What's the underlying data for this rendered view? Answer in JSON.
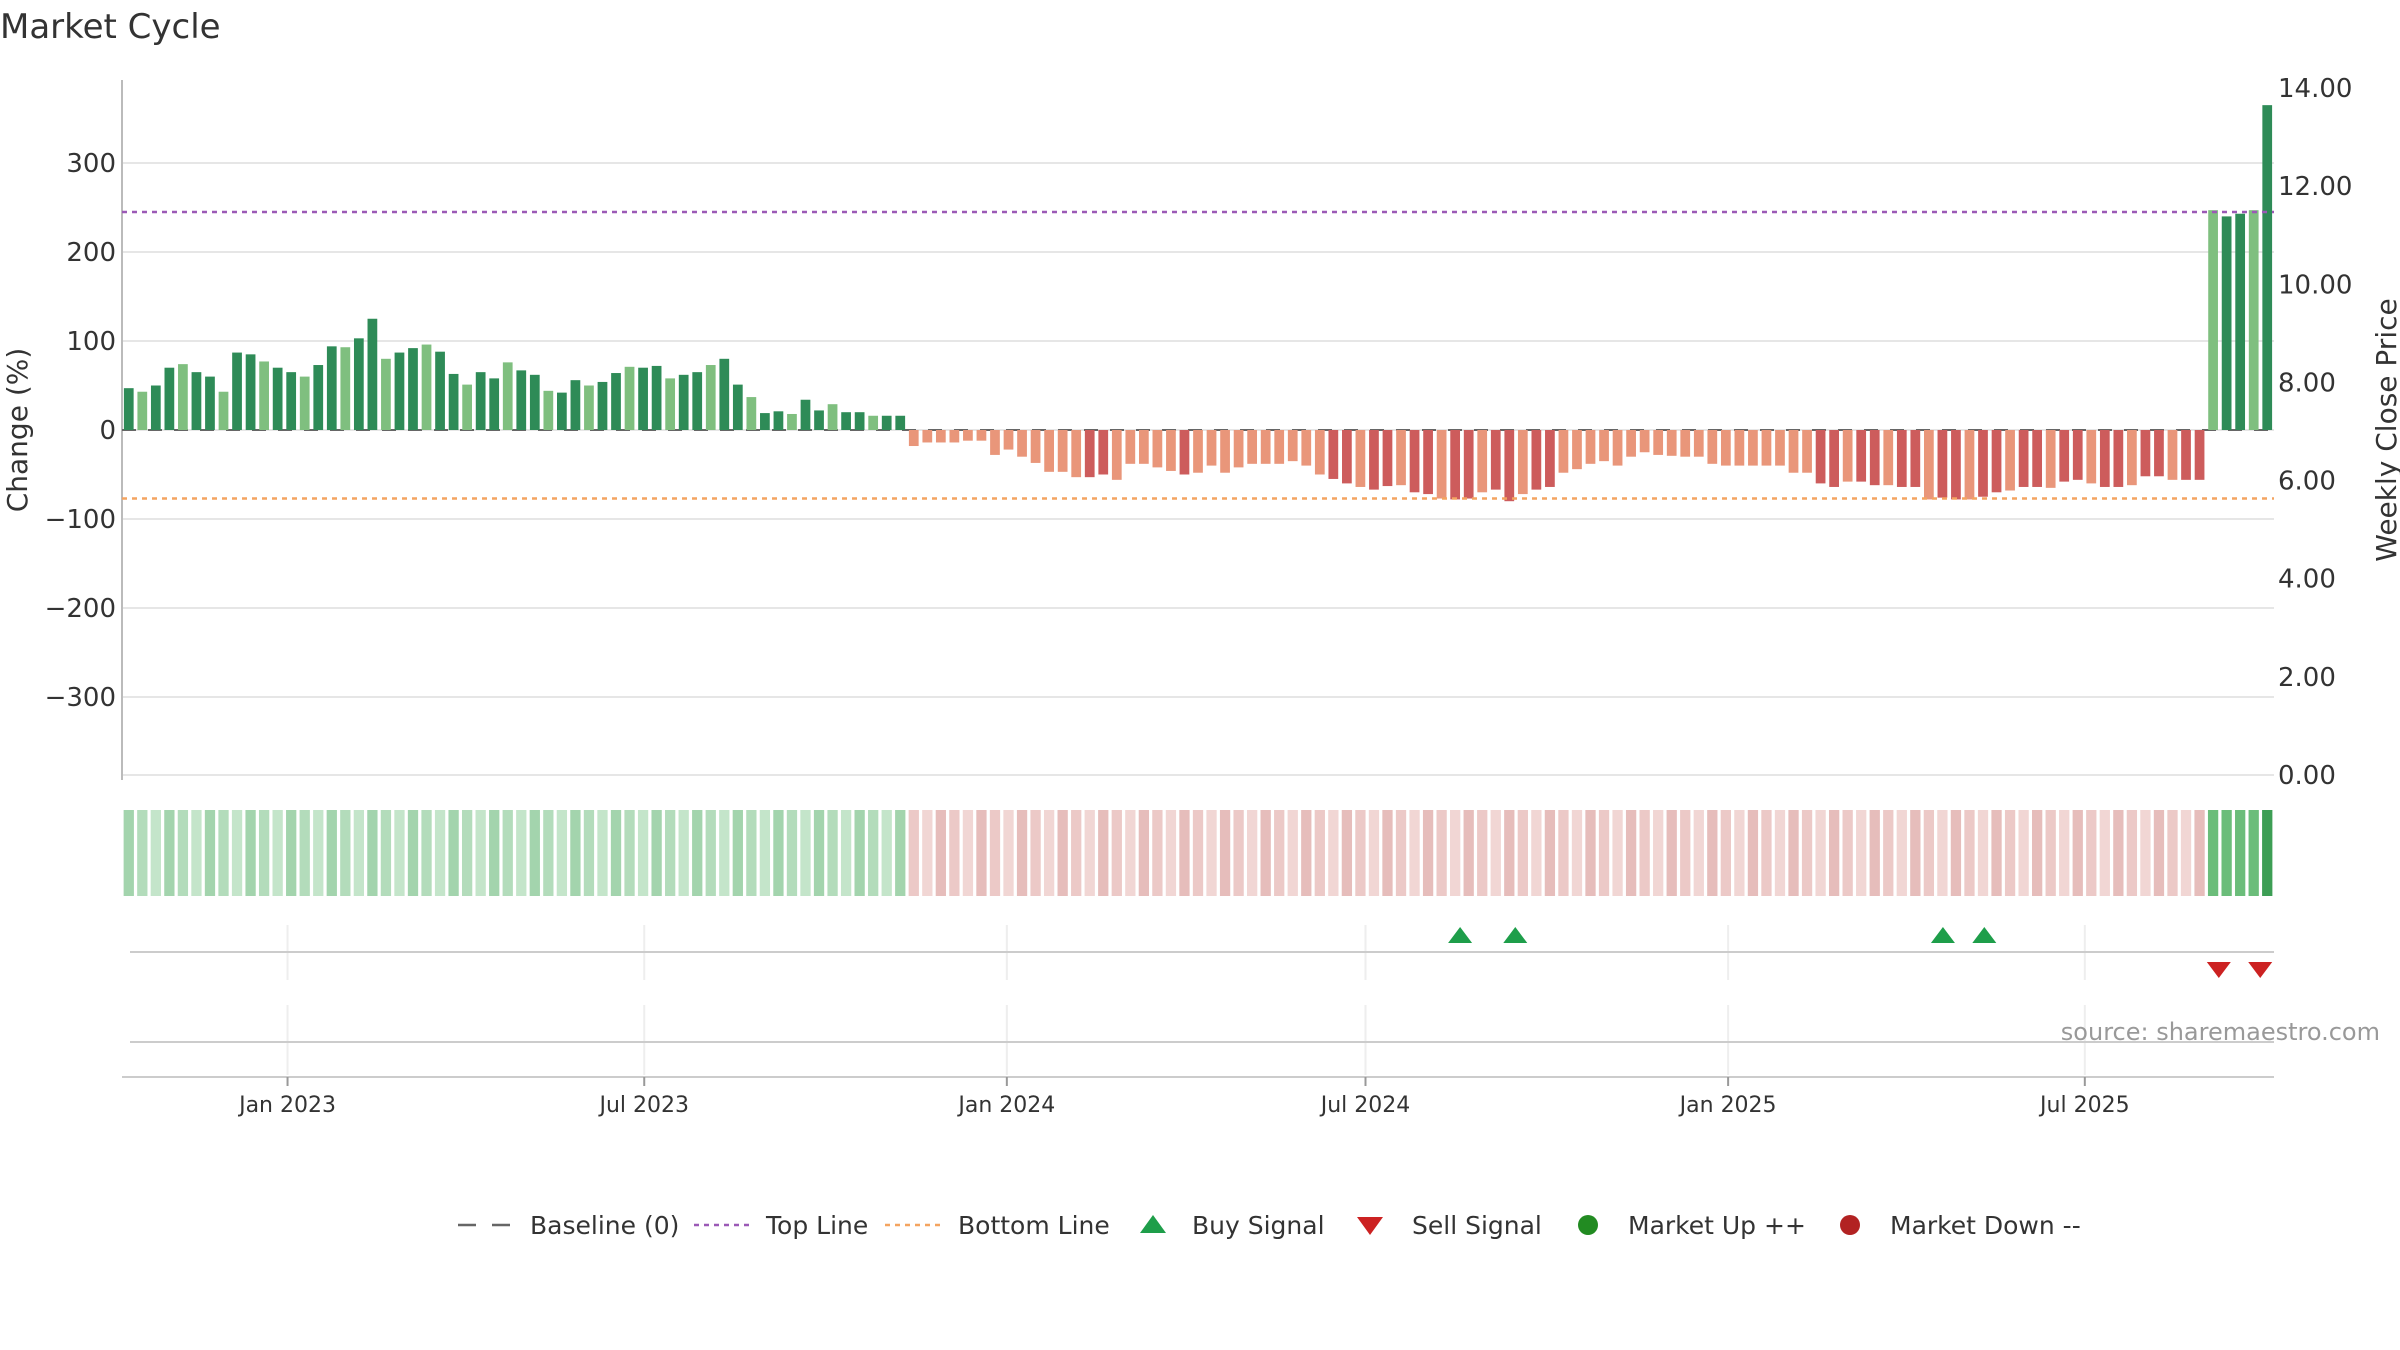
{
  "chart_data": {
    "type": "bar",
    "title": "Market Cycle",
    "ylabel": "Change (%)",
    "y2label": "Weekly Close Price",
    "ylim": [
      -390,
      390
    ],
    "y2lim": [
      0,
      14
    ],
    "yticks": [
      300,
      200,
      100,
      0,
      -100,
      -200,
      -300
    ],
    "yticklabels": [
      "300",
      "200",
      "100",
      "0",
      "−100",
      "−200",
      "−300"
    ],
    "y2ticks": [
      14,
      12,
      10,
      8,
      6,
      4,
      2,
      0
    ],
    "y2ticklabels": [
      "14.00",
      "12.00",
      "10.00",
      "8.00",
      "6.00",
      "4.00",
      "2.00",
      "0.00"
    ],
    "x_start": "2022-10-09",
    "x_end": "2025-10-05",
    "xticks": [
      {
        "date": "2023-01-01",
        "label": "Jan 2023"
      },
      {
        "date": "2023-07-01",
        "label": "Jul 2023"
      },
      {
        "date": "2024-01-01",
        "label": "Jan 2024"
      },
      {
        "date": "2024-07-01",
        "label": "Jul 2024"
      },
      {
        "date": "2025-01-01",
        "label": "Jan 2025"
      },
      {
        "date": "2025-07-01",
        "label": "Jul 2025"
      }
    ],
    "top_line": 245,
    "bottom_line": -77,
    "baseline": 0,
    "values": [
      47,
      43,
      50,
      70,
      74,
      65,
      60,
      43,
      87,
      85,
      77,
      70,
      65,
      60,
      73,
      94,
      93,
      103,
      125,
      80,
      87,
      92,
      96,
      88,
      63,
      51,
      65,
      58,
      76,
      67,
      62,
      44,
      42,
      56,
      50,
      54,
      64,
      71,
      70,
      72,
      58,
      62,
      65,
      73,
      80,
      51,
      37,
      19,
      21,
      18,
      34,
      22,
      29,
      20,
      20,
      16,
      16,
      16,
      -18,
      -14,
      -14,
      -14,
      -12,
      -12,
      -28,
      -22,
      -30,
      -37,
      -47,
      -47,
      -53,
      -53,
      -50,
      -56,
      -38,
      -38,
      -42,
      -46,
      -50,
      -48,
      -40,
      -48,
      -42,
      -38,
      -38,
      -38,
      -35,
      -40,
      -50,
      -55,
      -60,
      -64,
      -67,
      -63,
      -62,
      -70,
      -72,
      -77,
      -78,
      -77,
      -70,
      -67,
      -80,
      -72,
      -67,
      -64,
      -48,
      -44,
      -38,
      -35,
      -40,
      -30,
      -25,
      -28,
      -29,
      -30,
      -30,
      -38,
      -40,
      -40,
      -40,
      -40,
      -40,
      -48,
      -48,
      -60,
      -64,
      -58,
      -58,
      -62,
      -62,
      -64,
      -64,
      -78,
      -76,
      -78,
      -78,
      -75,
      -70,
      -68,
      -64,
      -64,
      -65,
      -58,
      -56,
      -60,
      -64,
      -64,
      -62,
      -52,
      -52,
      -56,
      -56,
      -56,
      247,
      240,
      243,
      247,
      365
    ],
    "heat_up_colors": [
      "#a3d4ad",
      "#b3dcbb",
      "#c4e5ca"
    ],
    "heat_down_colors": [
      "#e6bdbb",
      "#ecc9c7",
      "#f1d6d4"
    ],
    "heat_strong_up_color": "#6bbd7a",
    "heat_last_color": "#3d9e55",
    "buy_signals": [
      "2024-08-18",
      "2024-09-15",
      "2025-04-20",
      "2025-05-11"
    ],
    "sell_signals": [
      "2025-09-07",
      "2025-09-28"
    ],
    "source": "source: sharemaestro.com",
    "legend": [
      {
        "key": "baseline",
        "label": "Baseline (0)"
      },
      {
        "key": "top",
        "label": "Top Line"
      },
      {
        "key": "bottom",
        "label": "Bottom Line"
      },
      {
        "key": "buy",
        "label": "Buy Signal"
      },
      {
        "key": "sell",
        "label": "Sell Signal"
      },
      {
        "key": "up",
        "label": "Market Up ++"
      },
      {
        "key": "down",
        "label": "Market Down --"
      }
    ],
    "legend_position": "bottom-center",
    "grid": true
  },
  "colors": {
    "up_dark": "#2e8b57",
    "up_light": "#7fbf7f",
    "down_dark": "#cd5c5c",
    "down_light": "#e9967a",
    "top_line": "#9b59b6",
    "bottom_line": "#f4a460",
    "buy": "#1e9e4a",
    "sell": "#cc2222",
    "market_up": "#228b22",
    "market_down": "#b22222",
    "grid": "#e6e6e6",
    "axis": "#bbbbbb"
  }
}
